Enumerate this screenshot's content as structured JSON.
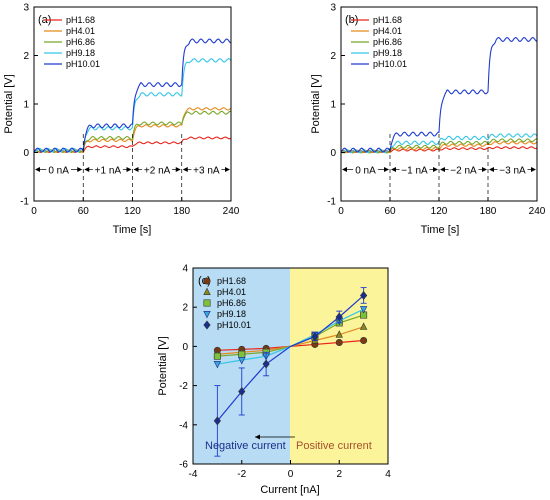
{
  "colors": {
    "pH1.68": "#e8261d",
    "pH4.01": "#e58a1f",
    "pH6.86": "#78a82a",
    "pH9.18": "#34c6e8",
    "pH10.01": "#1f3bd1",
    "c_marker": {
      "pH1.68": "#7a3b12",
      "pH4.01": "#8a8a1a",
      "pH6.86": "#7cc23a",
      "pH9.18": "#3aa5d8",
      "pH10.01": "#1b2e8c"
    },
    "neg_bg": "#b7dcf3",
    "pos_bg": "#fbf49b",
    "neg_text": "#1b2e8c",
    "pos_text": "#a6502a"
  },
  "chart_data": [
    {
      "panel": "(a)",
      "type": "line",
      "xlabel": "Time [s]",
      "ylabel": "Potential [V]",
      "xlim": [
        0,
        240
      ],
      "ylim": [
        -1,
        3
      ],
      "xticks": [
        0,
        60,
        120,
        180,
        240
      ],
      "yticks": [
        -1,
        0,
        1,
        2,
        3
      ],
      "legend": [
        "pH1.68",
        "pH4.01",
        "pH6.86",
        "pH9.18",
        "pH10.01"
      ],
      "legend_position": "top-left",
      "segments": [
        {
          "label": "0 nA",
          "x": [
            0,
            60
          ]
        },
        {
          "label": "+1 nA",
          "x": [
            60,
            120
          ]
        },
        {
          "label": "+2 nA",
          "x": [
            120,
            180
          ]
        },
        {
          "label": "+3 nA",
          "x": [
            180,
            240
          ]
        }
      ],
      "series": [
        {
          "name": "pH1.68",
          "levels": [
            0.02,
            0.12,
            0.2,
            0.3
          ]
        },
        {
          "name": "pH4.01",
          "levels": [
            0.03,
            0.25,
            0.55,
            0.9
          ]
        },
        {
          "name": "pH6.86",
          "levels": [
            0.03,
            0.3,
            0.6,
            0.82
          ]
        },
        {
          "name": "pH9.18",
          "levels": [
            0.05,
            0.5,
            1.2,
            1.9
          ]
        },
        {
          "name": "pH10.01",
          "levels": [
            0.05,
            0.55,
            1.4,
            2.3
          ]
        }
      ]
    },
    {
      "panel": "(b)",
      "type": "line",
      "xlabel": "Time [s]",
      "ylabel": "Potential [V]",
      "xlim": [
        0,
        240
      ],
      "ylim": [
        -1,
        3
      ],
      "xticks": [
        0,
        60,
        120,
        180,
        240
      ],
      "yticks": [
        -1,
        0,
        1,
        2,
        3
      ],
      "legend": [
        "pH1.68",
        "pH4.01",
        "pH6.86",
        "pH9.18",
        "pH10.01"
      ],
      "legend_position": "top-left",
      "segments": [
        {
          "label": "0 nA",
          "x": [
            0,
            60
          ]
        },
        {
          "label": "−1 nA",
          "x": [
            60,
            120
          ]
        },
        {
          "label": "−2 nA",
          "x": [
            120,
            180
          ]
        },
        {
          "label": "−3 nA",
          "x": [
            180,
            240
          ]
        }
      ],
      "series": [
        {
          "name": "pH1.68",
          "levels": [
            0.02,
            0.05,
            0.08,
            0.1
          ]
        },
        {
          "name": "pH4.01",
          "levels": [
            0.02,
            0.08,
            0.15,
            0.2
          ]
        },
        {
          "name": "pH6.86",
          "levels": [
            0.02,
            0.12,
            0.2,
            0.25
          ]
        },
        {
          "name": "pH9.18",
          "levels": [
            0.03,
            0.2,
            0.3,
            0.35
          ]
        },
        {
          "name": "pH10.01",
          "levels": [
            0.05,
            0.38,
            1.25,
            2.33
          ]
        }
      ]
    },
    {
      "panel": "(c)",
      "type": "scatter",
      "xlabel": "Current [nA]",
      "ylabel": "Potential [V]",
      "xlim": [
        -4,
        4
      ],
      "ylim": [
        -6,
        4
      ],
      "xticks": [
        -4,
        -2,
        0,
        2,
        4
      ],
      "yticks": [
        -6,
        -4,
        -2,
        0,
        2,
        4
      ],
      "legend": [
        "pH1.68",
        "pH4.01",
        "pH6.86",
        "pH9.18",
        "pH10.01"
      ],
      "legend_position": "top-left",
      "x": [
        -3,
        -2,
        -1,
        1,
        2,
        3
      ],
      "series": [
        {
          "name": "pH1.68",
          "values": [
            -0.2,
            -0.15,
            -0.1,
            0.1,
            0.2,
            0.3
          ],
          "marker": "circle"
        },
        {
          "name": "pH4.01",
          "values": [
            -0.4,
            -0.3,
            -0.2,
            0.3,
            0.6,
            1.0
          ],
          "marker": "triangle-up"
        },
        {
          "name": "pH6.86",
          "values": [
            -0.5,
            -0.4,
            -0.3,
            0.5,
            1.2,
            1.6
          ],
          "marker": "square"
        },
        {
          "name": "pH9.18",
          "values": [
            -0.9,
            -0.7,
            -0.5,
            0.6,
            1.3,
            1.9
          ],
          "marker": "triangle-down"
        },
        {
          "name": "pH10.01",
          "values": [
            -3.8,
            -2.3,
            -0.9,
            0.5,
            1.5,
            2.6
          ],
          "errors": [
            1.8,
            1.2,
            0.6,
            0.2,
            0.3,
            0.4
          ],
          "marker": "diamond"
        }
      ],
      "regions": {
        "negative": "Negative current",
        "positive": "Positive current"
      }
    }
  ]
}
